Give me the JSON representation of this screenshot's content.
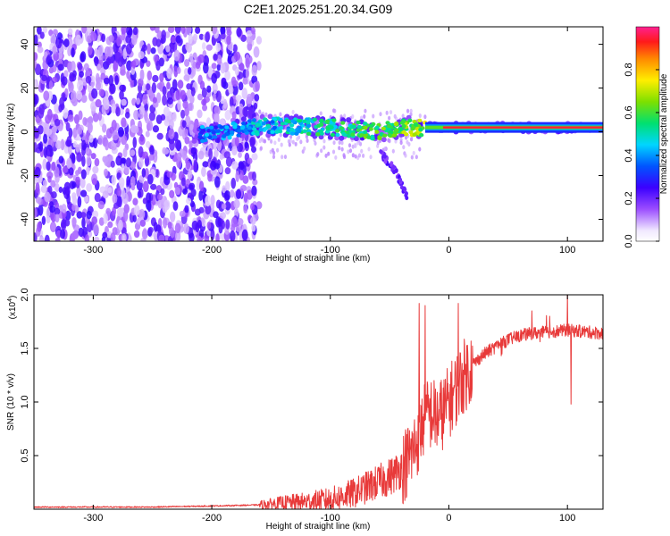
{
  "title": "C2E1.2025.251.20.34.G09",
  "chart_data": [
    {
      "type": "heatmap",
      "xlabel": "Height of straight line (km)",
      "ylabel": "Frequency (Hz)",
      "xlim": [
        -350,
        130
      ],
      "ylim": [
        -50,
        48
      ],
      "xticks": [
        -300,
        -200,
        -100,
        0,
        100
      ],
      "xtick_labels": [
        "-300",
        "-200",
        "-100",
        "0",
        "100"
      ],
      "yticks": [
        -40,
        -20,
        0,
        20,
        40
      ],
      "ytick_labels": [
        "-40",
        "-20",
        "0",
        "20",
        "40"
      ],
      "grid": false,
      "colorbar": {
        "label": "Normalized spectral amplitude",
        "range": [
          0,
          1
        ],
        "ticks": [
          0.0,
          0.2,
          0.4,
          0.6,
          0.8
        ],
        "tick_labels": [
          "0.0",
          "0.2",
          "0.4",
          "0.6",
          "0.8"
        ],
        "colormap": "rainbow (white, purple, blue, cyan, green, yellow, orange, red, magenta)"
      },
      "features": {
        "noise_band_x": [
          -350,
          -160
        ],
        "noise_band_y": [
          -50,
          48
        ],
        "noise_amplitude": [
          0.05,
          0.25
        ],
        "signal_center_y": [
          {
            "x": -210,
            "y": -1
          },
          {
            "x": -150,
            "y": 3
          },
          {
            "x": -100,
            "y": 2
          },
          {
            "x": -60,
            "y": 0
          },
          {
            "x": -40,
            "y": 2
          },
          {
            "x": -20,
            "y": 2
          },
          {
            "x": 0,
            "y": 2
          },
          {
            "x": 60,
            "y": 2
          },
          {
            "x": 130,
            "y": 2
          }
        ],
        "faint_descending_branch": [
          {
            "x": -60,
            "y": -8
          },
          {
            "x": -45,
            "y": -18
          },
          {
            "x": -35,
            "y": -30
          }
        ],
        "strong_carrier_x": [
          -20,
          130
        ],
        "strong_carrier_y": 2,
        "strong_carrier_amplitude": 1.0
      }
    },
    {
      "type": "line",
      "xlabel": "Height of straight line (km)",
      "ylabel": "SNR (10 * v/v)",
      "y_multiplier_label": "(x10",
      "y_multiplier_exp": "4",
      "y_multiplier_close": ")",
      "xlim": [
        -350,
        130
      ],
      "ylim": [
        0,
        2.0
      ],
      "xticks": [
        -300,
        -200,
        -100,
        0,
        100
      ],
      "xtick_labels": [
        "-300",
        "-200",
        "-100",
        "0",
        "100"
      ],
      "yticks": [
        0.5,
        1.0,
        1.5,
        2.0
      ],
      "ytick_labels": [
        "0.5",
        "1.0",
        "1.5",
        "2.0"
      ],
      "grid": false,
      "color": "#e83a3a",
      "series": [
        {
          "x": [
            -350,
            -300,
            -250,
            -200,
            -160,
            -140,
            -120,
            -100,
            -90,
            -80,
            -70,
            -60,
            -50,
            -40,
            -35,
            -30,
            -25,
            -20,
            -15,
            -10,
            -5,
            0,
            10,
            20,
            30,
            40,
            50,
            60,
            70,
            80,
            90,
            100,
            110,
            120,
            130
          ],
          "values": [
            0.02,
            0.02,
            0.02,
            0.03,
            0.04,
            0.06,
            0.07,
            0.09,
            0.12,
            0.15,
            0.2,
            0.25,
            0.3,
            0.38,
            0.45,
            0.55,
            0.7,
            0.85,
            0.9,
            0.85,
            0.9,
            1.0,
            1.2,
            1.35,
            1.45,
            1.52,
            1.58,
            1.62,
            1.64,
            1.65,
            1.66,
            1.67,
            1.66,
            1.65,
            1.64
          ],
          "spikes": [
            {
              "x": -25,
              "y": 1.92
            },
            {
              "x": -20,
              "y": 1.9
            },
            {
              "x": 8,
              "y": 1.92
            },
            {
              "x": 100,
              "y": 2.0
            },
            {
              "x": 103,
              "y": 0.98
            },
            {
              "x": 70,
              "y": 1.85
            },
            {
              "x": 85,
              "y": 1.8
            }
          ]
        }
      ]
    }
  ]
}
